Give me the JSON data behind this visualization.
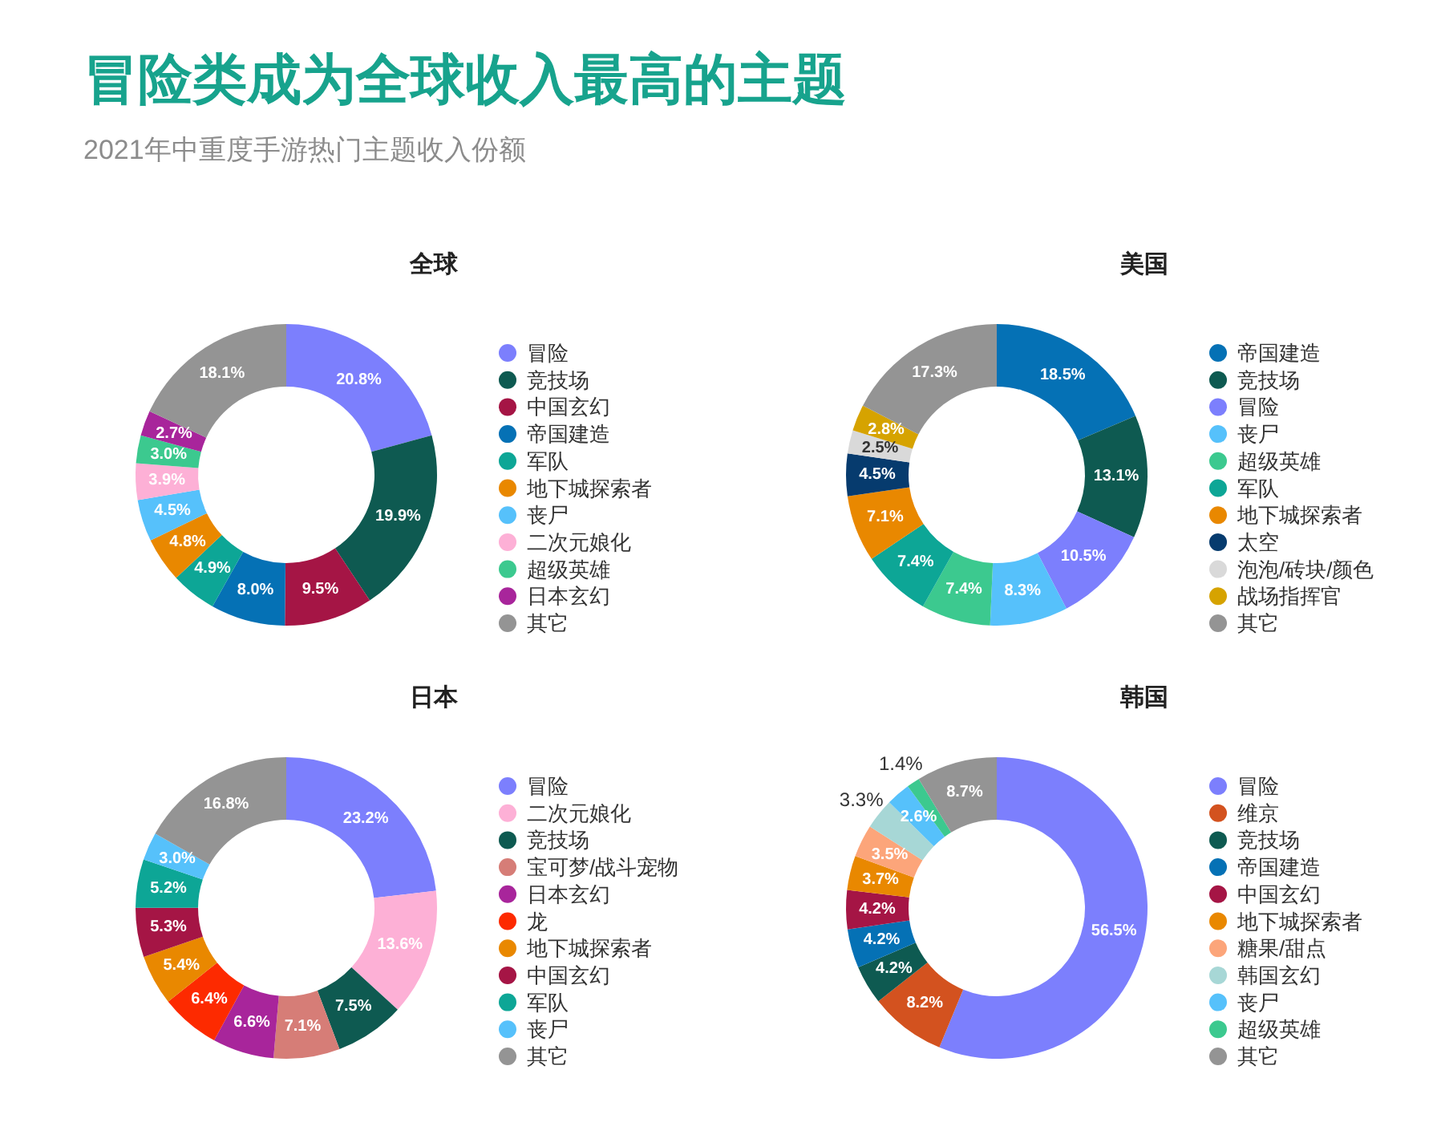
{
  "chart_data": [
    {
      "type": "other",
      "title": "冒险类成为全球收入最高的主题",
      "subtitle": "2021年中重度手游热门主题收入份额"
    },
    {
      "type": "donut",
      "title": "全球",
      "legend": "right",
      "categories": [
        "冒险",
        "竞技场",
        "中国玄幻",
        "帝国建造",
        "军队",
        "地下城探索者",
        "丧尸",
        "二次元娘化",
        "超级英雄",
        "日本玄幻",
        "其它"
      ],
      "values": [
        20.8,
        19.9,
        9.5,
        8.0,
        4.9,
        4.8,
        4.5,
        3.9,
        3.0,
        2.7,
        18.1
      ],
      "value_labels": [
        "20.8%",
        "19.9%",
        "9.5%",
        "8.0%",
        "4.9%",
        "4.8%",
        "4.5%",
        "3.9%",
        "3.0%",
        "2.7%",
        "18.1%"
      ],
      "colors": [
        "#7c7ffd",
        "#0e5a51",
        "#a51545",
        "#0571b5",
        "#0da696",
        "#e98800",
        "#56c1fb",
        "#fdb0d6",
        "#3cc98f",
        "#a8259b",
        "#949494"
      ]
    },
    {
      "type": "donut",
      "title": "美国",
      "legend": "right",
      "categories": [
        "帝国建造",
        "竞技场",
        "冒险",
        "丧尸",
        "超级英雄",
        "军队",
        "地下城探索者",
        "太空",
        "泡泡/砖块/颜色",
        "战场指挥官",
        "其它"
      ],
      "values": [
        18.5,
        13.1,
        10.5,
        8.3,
        7.4,
        7.4,
        7.1,
        4.5,
        2.5,
        2.8,
        17.3
      ],
      "value_labels": [
        "18.5%",
        "13.1%",
        "10.5%",
        "8.3%",
        "7.4%",
        "7.4%",
        "7.1%",
        "4.5%",
        "2.5%",
        "2.8%",
        "17.3%"
      ],
      "colors": [
        "#0571b5",
        "#0e5a51",
        "#7c7ffd",
        "#56c1fb",
        "#3cc98f",
        "#0da696",
        "#e98800",
        "#063b6e",
        "#d9d9d9",
        "#d6a300",
        "#949494"
      ]
    },
    {
      "type": "donut",
      "title": "日本",
      "legend": "right",
      "categories": [
        "冒险",
        "二次元娘化",
        "竞技场",
        "宝可梦/战斗宠物",
        "日本玄幻",
        "龙",
        "地下城探索者",
        "中国玄幻",
        "军队",
        "丧尸",
        "其它"
      ],
      "values": [
        23.2,
        13.6,
        7.5,
        7.1,
        6.6,
        6.4,
        5.4,
        5.3,
        5.2,
        3.0,
        16.8
      ],
      "value_labels": [
        "23.2%",
        "13.6%",
        "7.5%",
        "7.1%",
        "6.6%",
        "6.4%",
        "5.4%",
        "5.3%",
        "5.2%",
        "3.0%",
        "16.8%"
      ],
      "colors": [
        "#7c7ffd",
        "#fdb0d6",
        "#0e5a51",
        "#d67d77",
        "#a8259b",
        "#fd2a00",
        "#e98800",
        "#a51545",
        "#0da696",
        "#56c1fb",
        "#949494"
      ]
    },
    {
      "type": "donut",
      "title": "韩国",
      "legend": "right",
      "categories": [
        "冒险",
        "维京",
        "竞技场",
        "帝国建造",
        "中国玄幻",
        "地下城探索者",
        "糖果/甜点",
        "韩国玄幻",
        "丧尸",
        "超级英雄",
        "其它"
      ],
      "values": [
        56.5,
        8.2,
        4.2,
        4.2,
        4.2,
        3.7,
        3.5,
        3.3,
        2.6,
        1.4,
        8.7
      ],
      "value_labels": [
        "56.5%",
        "8.2%",
        "4.2%",
        "4.2%",
        "4.2%",
        "3.7%",
        "3.5%",
        "3.3%",
        "2.6%",
        "1.4%",
        "8.7%"
      ],
      "colors": [
        "#7c7ffd",
        "#d3521f",
        "#0e5a51",
        "#0571b5",
        "#a51545",
        "#e98800",
        "#fca57a",
        "#a7d7d6",
        "#56c1fb",
        "#3cc98f",
        "#949494"
      ]
    }
  ]
}
